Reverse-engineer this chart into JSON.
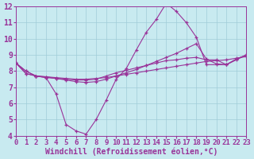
{
  "background_color": "#c8eaf0",
  "grid_color": "#a0ccd8",
  "line_color": "#993399",
  "marker": "+",
  "xlabel": "Windchill (Refroidissement éolien,°C)",
  "xlabel_fontsize": 7.0,
  "tick_fontsize": 6.5,
  "xlim": [
    0,
    23
  ],
  "ylim": [
    4,
    12
  ],
  "yticks": [
    4,
    5,
    6,
    7,
    8,
    9,
    10,
    11,
    12
  ],
  "xticks": [
    0,
    1,
    2,
    3,
    4,
    5,
    6,
    7,
    8,
    9,
    10,
    11,
    12,
    13,
    14,
    15,
    16,
    17,
    18,
    19,
    20,
    21,
    22,
    23
  ],
  "series": [
    [
      8.5,
      8.0,
      7.7,
      7.6,
      6.6,
      4.7,
      4.3,
      4.1,
      5.0,
      6.2,
      7.5,
      8.15,
      9.3,
      10.4,
      11.2,
      12.2,
      11.7,
      11.0,
      10.1,
      8.4,
      8.4,
      8.4,
      8.7,
      9.0
    ],
    [
      8.5,
      7.85,
      7.7,
      7.65,
      7.6,
      7.55,
      7.5,
      7.5,
      7.55,
      7.6,
      7.7,
      7.8,
      7.9,
      8.0,
      8.1,
      8.2,
      8.3,
      8.4,
      8.5,
      8.6,
      8.65,
      8.7,
      8.8,
      8.9
    ],
    [
      8.5,
      7.85,
      7.7,
      7.65,
      7.55,
      7.45,
      7.35,
      7.3,
      7.35,
      7.5,
      7.7,
      7.9,
      8.1,
      8.35,
      8.6,
      8.85,
      9.1,
      9.4,
      9.7,
      8.75,
      8.45,
      8.4,
      8.75,
      9.0
    ],
    [
      8.5,
      8.0,
      7.7,
      7.6,
      7.55,
      7.5,
      7.45,
      7.45,
      7.5,
      7.7,
      7.9,
      8.05,
      8.2,
      8.35,
      8.5,
      8.65,
      8.7,
      8.8,
      8.85,
      8.7,
      8.7,
      8.4,
      8.75,
      9.0
    ]
  ]
}
